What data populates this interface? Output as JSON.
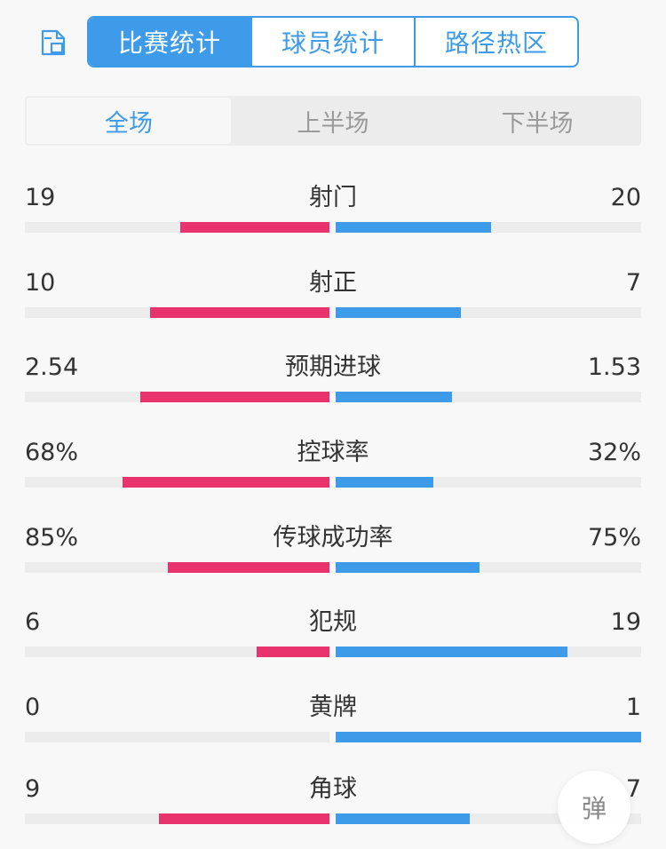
{
  "header": {
    "share_icon": "share-save-icon",
    "tabs": [
      {
        "label": "比赛统计",
        "active": true
      },
      {
        "label": "球员统计",
        "active": false
      },
      {
        "label": "路径热区",
        "active": false
      }
    ]
  },
  "period_tabs": [
    {
      "label": "全场",
      "active": true
    },
    {
      "label": "上半场",
      "active": false
    },
    {
      "label": "下半场",
      "active": false
    }
  ],
  "colors": {
    "home": "#e8336f",
    "away": "#3d9bea",
    "accent": "#3d9bea"
  },
  "stats": [
    {
      "label": "射门",
      "home": "19",
      "away": "20",
      "home_share": 0.49,
      "away_share": 0.51
    },
    {
      "label": "射正",
      "home": "10",
      "away": "7",
      "home_share": 0.59,
      "away_share": 0.41
    },
    {
      "label": "预期进球",
      "home": "2.54",
      "away": "1.53",
      "home_share": 0.62,
      "away_share": 0.38
    },
    {
      "label": "控球率",
      "home": "68%",
      "away": "32%",
      "home_share": 0.68,
      "away_share": 0.32
    },
    {
      "label": "传球成功率",
      "home": "85%",
      "away": "75%",
      "home_share": 0.53,
      "away_share": 0.47
    },
    {
      "label": "犯规",
      "home": "6",
      "away": "19",
      "home_share": 0.24,
      "away_share": 0.76
    },
    {
      "label": "黄牌",
      "home": "0",
      "away": "1",
      "home_share": 0.0,
      "away_share": 1.0
    },
    {
      "label": "角球",
      "home": "9",
      "away": "7",
      "home_share": 0.56,
      "away_share": 0.44
    }
  ],
  "danmu_button": {
    "label": "弹"
  }
}
